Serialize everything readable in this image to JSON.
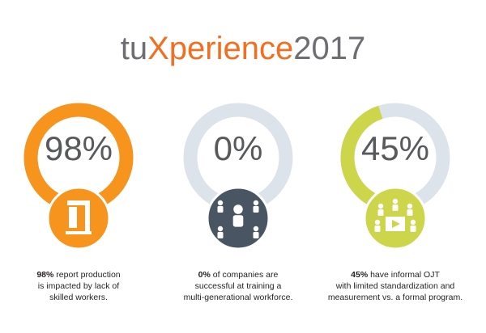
{
  "header": {
    "title_prefix": "tu",
    "title_highlight": "Xperience",
    "title_year": "2017"
  },
  "stats": [
    {
      "value": 98,
      "value_label": "98%",
      "color": "#f7941d",
      "icon_color": "#f7941d",
      "caption_bold": "98%",
      "caption_lines": [
        "report production",
        "is impacted by lack of",
        "skilled workers."
      ]
    },
    {
      "value": 0,
      "value_label": "0%",
      "color": "#4a5563",
      "icon_color": "#4a5563",
      "caption_bold": "0%",
      "caption_lines": [
        "of companies are",
        "successful at training a",
        "multi-generational workforce."
      ]
    },
    {
      "value": 45,
      "value_label": "45%",
      "color": "#cdd54a",
      "icon_color": "#cdd54a",
      "caption_bold": "45%",
      "caption_lines": [
        "have informal OJT",
        "with limited standardization and",
        "measurement vs. a formal program."
      ]
    }
  ]
}
